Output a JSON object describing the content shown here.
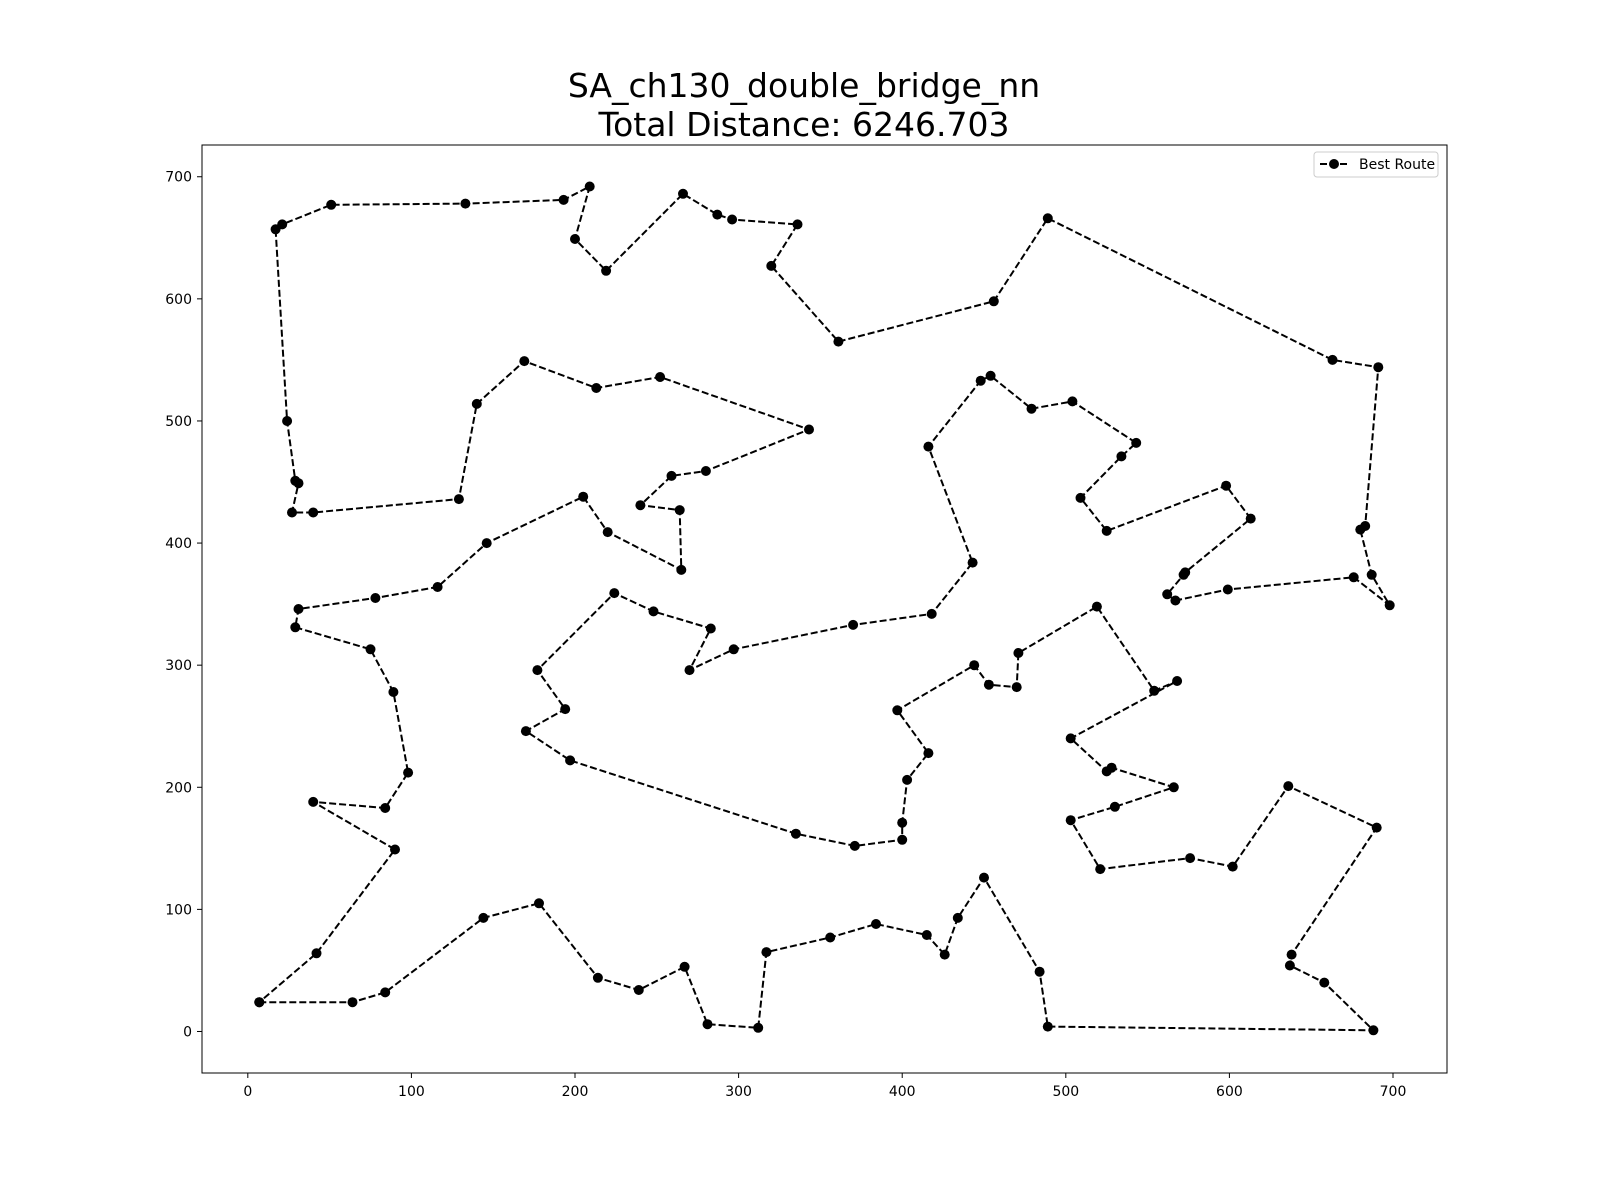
{
  "chart_data": {
    "type": "line",
    "title_line1": "SA_ch130_double_bridge_nn",
    "title_line2": "Total Distance: 6246.703",
    "xlabel": "",
    "ylabel": "",
    "xlim": [
      -28,
      733
    ],
    "ylim": [
      -34,
      726
    ],
    "x_ticks": [
      0,
      100,
      200,
      300,
      400,
      500,
      600,
      700
    ],
    "y_ticks": [
      0,
      100,
      200,
      300,
      400,
      500,
      600,
      700
    ],
    "grid": false,
    "legend": {
      "placement": "top-right",
      "entries": [
        "Best Route"
      ]
    },
    "series": [
      {
        "name": "Best Route",
        "color": "#000000",
        "line_style": "dashed",
        "marker": "circle",
        "points": [
          [
            7,
            24
          ],
          [
            64,
            24
          ],
          [
            84,
            32
          ],
          [
            144,
            93
          ],
          [
            178,
            105
          ],
          [
            214,
            44
          ],
          [
            239,
            34
          ],
          [
            267,
            53
          ],
          [
            281,
            6
          ],
          [
            312,
            3
          ],
          [
            317,
            65
          ],
          [
            356,
            77
          ],
          [
            384,
            88
          ],
          [
            415,
            79
          ],
          [
            426,
            63
          ],
          [
            434,
            93
          ],
          [
            450,
            126
          ],
          [
            484,
            49
          ],
          [
            489,
            4
          ],
          [
            688,
            1
          ],
          [
            658,
            40
          ],
          [
            637,
            54
          ],
          [
            638,
            63
          ],
          [
            690,
            167
          ],
          [
            636,
            201
          ],
          [
            602,
            135
          ],
          [
            576,
            142
          ],
          [
            521,
            133
          ],
          [
            503,
            173
          ],
          [
            530,
            184
          ],
          [
            566,
            200
          ],
          [
            528,
            216
          ],
          [
            525,
            213
          ],
          [
            503,
            240
          ],
          [
            568,
            287
          ],
          [
            554,
            279
          ],
          [
            519,
            348
          ],
          [
            471,
            310
          ],
          [
            470,
            282
          ],
          [
            453,
            284
          ],
          [
            444,
            300
          ],
          [
            397,
            263
          ],
          [
            416,
            228
          ],
          [
            403,
            206
          ],
          [
            400,
            171
          ],
          [
            400,
            157
          ],
          [
            371,
            152
          ],
          [
            335,
            162
          ],
          [
            197,
            222
          ],
          [
            170,
            246
          ],
          [
            194,
            264
          ],
          [
            177,
            296
          ],
          [
            224,
            359
          ],
          [
            248,
            344
          ],
          [
            283,
            330
          ],
          [
            270,
            296
          ],
          [
            297,
            313
          ],
          [
            370,
            333
          ],
          [
            418,
            342
          ],
          [
            443,
            384
          ],
          [
            416,
            479
          ],
          [
            448,
            533
          ],
          [
            454,
            537
          ],
          [
            479,
            510
          ],
          [
            504,
            516
          ],
          [
            543,
            482
          ],
          [
            534,
            471
          ],
          [
            509,
            437
          ],
          [
            525,
            410
          ],
          [
            598,
            447
          ],
          [
            613,
            420
          ],
          [
            573,
            376
          ],
          [
            572,
            374
          ],
          [
            562,
            358
          ],
          [
            567,
            353
          ],
          [
            599,
            362
          ],
          [
            676,
            372
          ],
          [
            698,
            349
          ],
          [
            687,
            374
          ],
          [
            680,
            411
          ],
          [
            683,
            414
          ],
          [
            691,
            544
          ],
          [
            663,
            550
          ],
          [
            489,
            666
          ],
          [
            456,
            598
          ],
          [
            361,
            565
          ],
          [
            320,
            627
          ],
          [
            336,
            661
          ],
          [
            296,
            665
          ],
          [
            287,
            669
          ],
          [
            266,
            686
          ],
          [
            219,
            623
          ],
          [
            200,
            649
          ],
          [
            209,
            692
          ],
          [
            193,
            681
          ],
          [
            133,
            678
          ],
          [
            51,
            677
          ],
          [
            21,
            661
          ],
          [
            17,
            657
          ],
          [
            24,
            500
          ],
          [
            29,
            451
          ],
          [
            31,
            449
          ],
          [
            27,
            425
          ],
          [
            40,
            425
          ],
          [
            129,
            436
          ],
          [
            140,
            514
          ],
          [
            169,
            549
          ],
          [
            213,
            527
          ],
          [
            252,
            536
          ],
          [
            343,
            493
          ],
          [
            280,
            459
          ],
          [
            259,
            455
          ],
          [
            240,
            431
          ],
          [
            264,
            427
          ],
          [
            265,
            378
          ],
          [
            220,
            409
          ],
          [
            205,
            438
          ],
          [
            146,
            400
          ],
          [
            116,
            364
          ],
          [
            78,
            355
          ],
          [
            31,
            346
          ],
          [
            29,
            331
          ],
          [
            75,
            313
          ],
          [
            89,
            278
          ],
          [
            98,
            212
          ],
          [
            84,
            183
          ],
          [
            40,
            188
          ],
          [
            90,
            149
          ],
          [
            42,
            64
          ],
          [
            7,
            24
          ]
        ]
      }
    ]
  }
}
